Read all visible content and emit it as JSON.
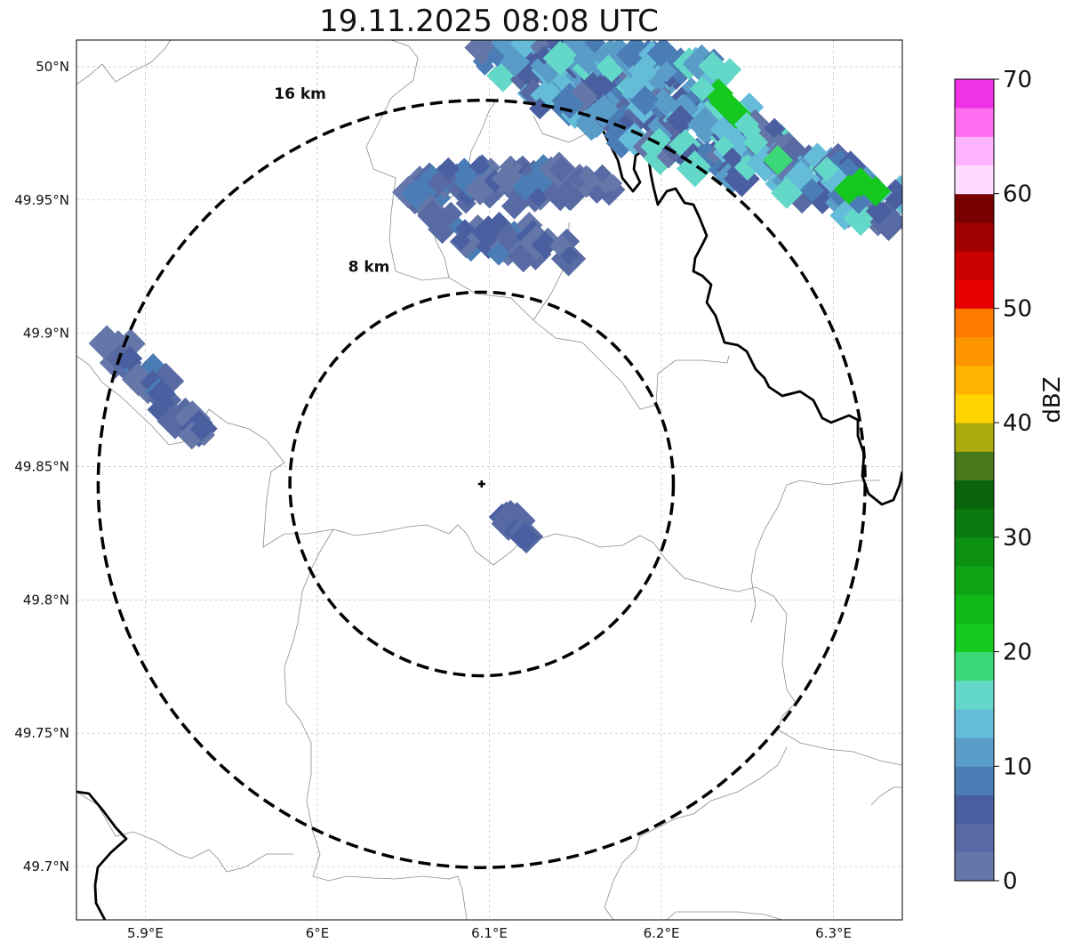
{
  "title": "19.11.2025 08:08 UTC",
  "map": {
    "lon_range": [
      5.86,
      6.34
    ],
    "lat_range": [
      49.68,
      50.01
    ],
    "lon_ticks": [
      {
        "value": 5.9,
        "label": "5.9°E"
      },
      {
        "value": 6.0,
        "label": "6°E"
      },
      {
        "value": 6.1,
        "label": "6.1°E"
      },
      {
        "value": 6.2,
        "label": "6.2°E"
      },
      {
        "value": 6.3,
        "label": "6.3°E"
      }
    ],
    "lat_ticks": [
      {
        "value": 50.0,
        "label": "50°N"
      },
      {
        "value": 49.95,
        "label": "49.95°N"
      },
      {
        "value": 49.9,
        "label": "49.9°N"
      },
      {
        "value": 49.85,
        "label": "49.85°N"
      },
      {
        "value": 49.8,
        "label": "49.8°N"
      },
      {
        "value": 49.75,
        "label": "49.75°N"
      },
      {
        "value": 49.7,
        "label": "49.7°N"
      }
    ],
    "center": {
      "lon": 6.0955,
      "lat": 49.8435
    },
    "rings": [
      {
        "label": "8 km",
        "radius_km": 8,
        "label_lon": 6.03,
        "label_lat": 49.923
      },
      {
        "label": "16 km",
        "radius_km": 16,
        "label_lon": 5.99,
        "label_lat": 49.988
      }
    ],
    "grid": true,
    "colors": {
      "ring": "#000000",
      "border": "#000000",
      "admin_line": "#8c8c8c",
      "grid": "#bdbdbd"
    }
  },
  "colorbar": {
    "label": "dBZ",
    "min": 0,
    "max": 70,
    "step": 2.5,
    "ticks": [
      {
        "value": 0,
        "label": "0"
      },
      {
        "value": 10,
        "label": "10"
      },
      {
        "value": 20,
        "label": "20"
      },
      {
        "value": 30,
        "label": "30"
      },
      {
        "value": 40,
        "label": "40"
      },
      {
        "value": 50,
        "label": "50"
      },
      {
        "value": 60,
        "label": "60"
      },
      {
        "value": 70,
        "label": "70"
      }
    ],
    "colors": [
      "#6477a8",
      "#576aa3",
      "#4a5fa0",
      "#4a7db6",
      "#5a9cc8",
      "#64bcd8",
      "#64d8c8",
      "#3cd878",
      "#14c81e",
      "#10b818",
      "#0ea514",
      "#0c9010",
      "#0a7a0e",
      "#0a640c",
      "#487818",
      "#aaaa0a",
      "#ffd200",
      "#ffb400",
      "#ff9600",
      "#ff7800",
      "#e60000",
      "#c80000",
      "#a00000",
      "#780000",
      "#ffdcff",
      "#ffb4ff",
      "#ff6ef0",
      "#f032e6"
    ]
  }
}
